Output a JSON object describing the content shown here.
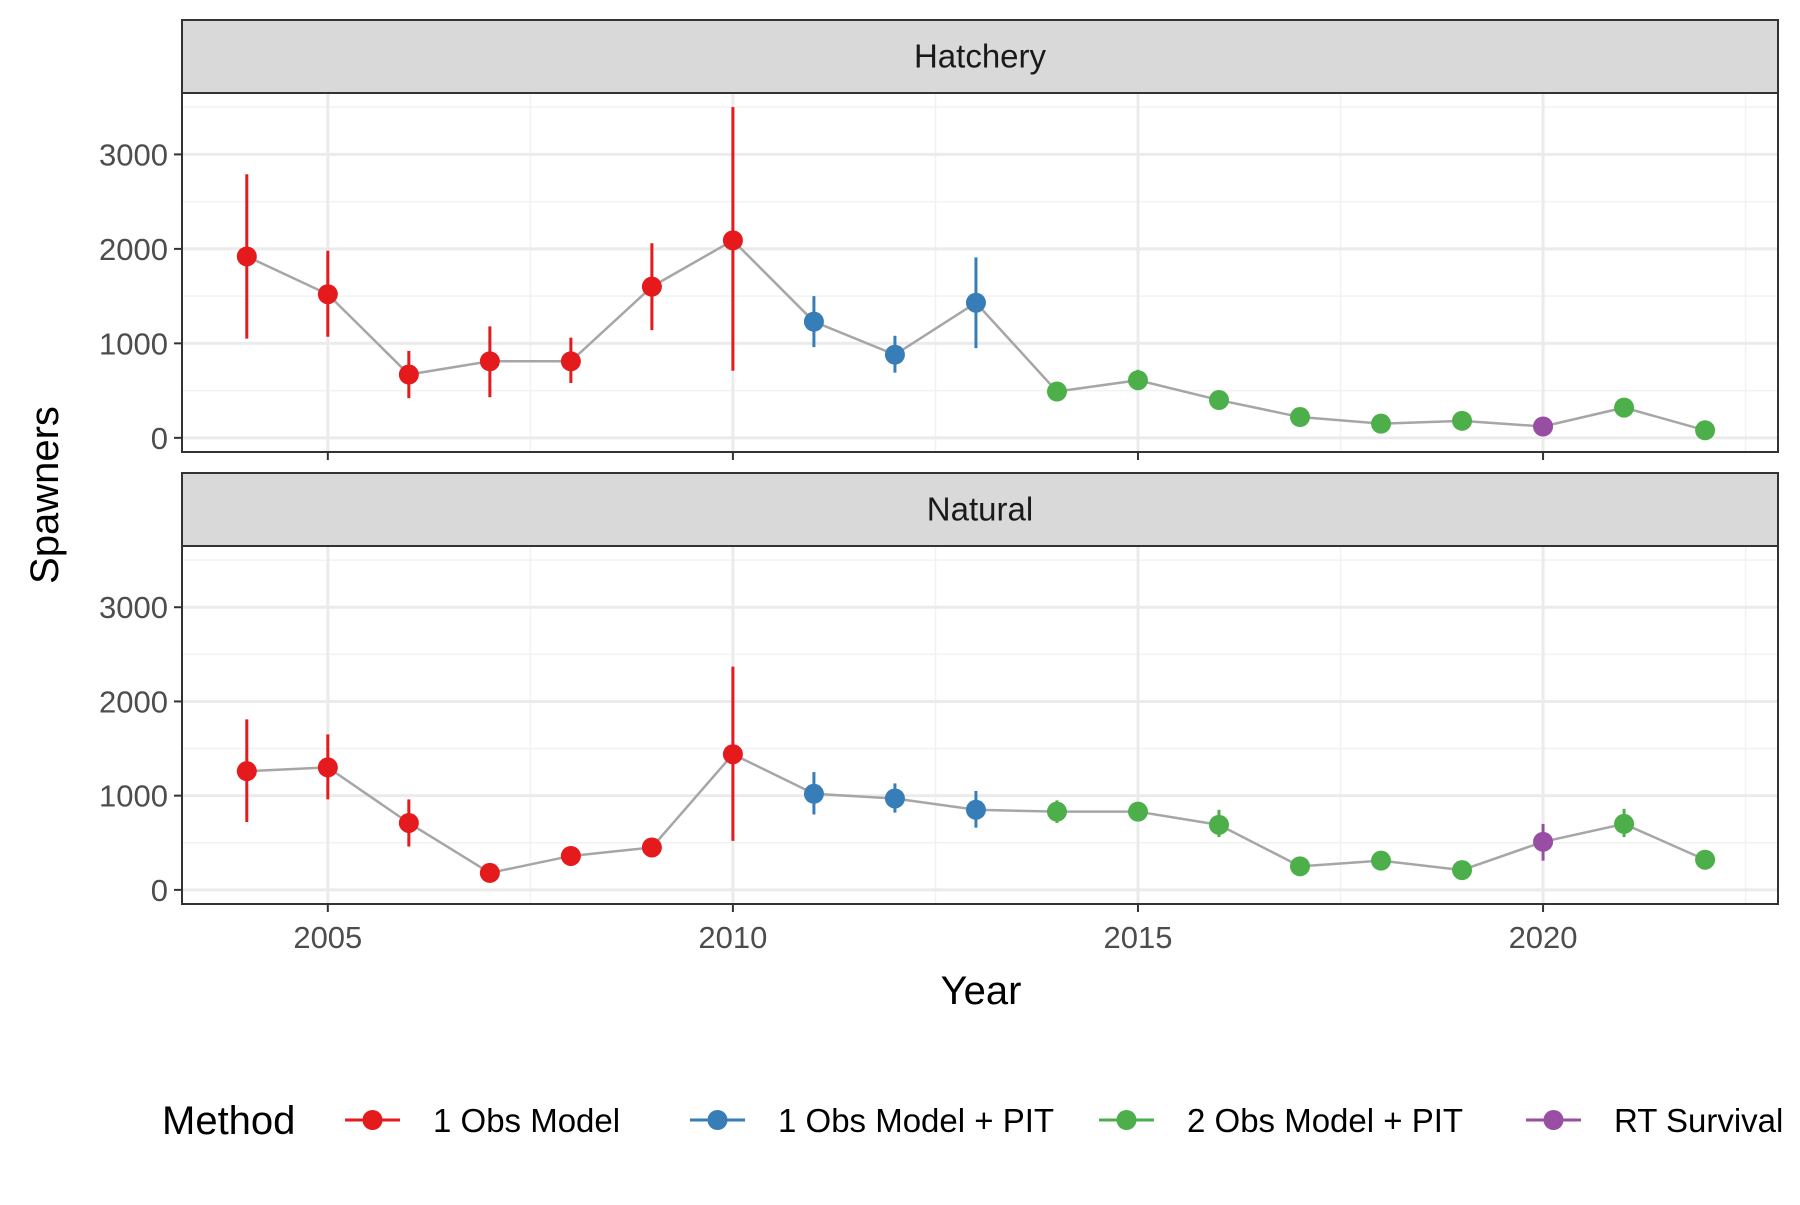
{
  "chart_data": {
    "type": "line",
    "xlabel": "Year",
    "ylabel": "Spawners",
    "xlim": [
      2003.2,
      2022.9
    ],
    "ylim": [
      -150,
      3650
    ],
    "x_ticks": [
      2005,
      2010,
      2015,
      2020
    ],
    "y_ticks": [
      0,
      1000,
      2000,
      3000
    ],
    "grid": true,
    "legend_position": "bottom",
    "legend_title": "Method",
    "methods": [
      {
        "name": "1 Obs Model",
        "color": "#E41A1C"
      },
      {
        "name": "1 Obs Model + PIT",
        "color": "#377EB8"
      },
      {
        "name": "2 Obs Model + PIT",
        "color": "#4DAF4A"
      },
      {
        "name": "RT Survival",
        "color": "#984EA3"
      }
    ],
    "line_color": "#A6A6A6",
    "panels": [
      {
        "label": "Hatchery",
        "points": [
          {
            "year": 2004,
            "value": 1920,
            "lower": 1050,
            "upper": 2790,
            "method": 0
          },
          {
            "year": 2005,
            "value": 1520,
            "lower": 1070,
            "upper": 1980,
            "method": 0
          },
          {
            "year": 2006,
            "value": 670,
            "lower": 420,
            "upper": 920,
            "method": 0
          },
          {
            "year": 2007,
            "value": 810,
            "lower": 430,
            "upper": 1180,
            "method": 0
          },
          {
            "year": 2008,
            "value": 810,
            "lower": 580,
            "upper": 1060,
            "method": 0
          },
          {
            "year": 2009,
            "value": 1600,
            "lower": 1140,
            "upper": 2060,
            "method": 0
          },
          {
            "year": 2010,
            "value": 2090,
            "lower": 710,
            "upper": 3500,
            "method": 0
          },
          {
            "year": 2011,
            "value": 1230,
            "lower": 960,
            "upper": 1500,
            "method": 1
          },
          {
            "year": 2012,
            "value": 880,
            "lower": 690,
            "upper": 1080,
            "method": 1
          },
          {
            "year": 2013,
            "value": 1430,
            "lower": 950,
            "upper": 1910,
            "method": 1
          },
          {
            "year": 2014,
            "value": 490,
            "lower": 430,
            "upper": 550,
            "method": 2
          },
          {
            "year": 2015,
            "value": 610,
            "lower": 520,
            "upper": 720,
            "method": 2
          },
          {
            "year": 2016,
            "value": 400,
            "lower": 350,
            "upper": 450,
            "method": 2
          },
          {
            "year": 2017,
            "value": 220,
            "lower": 190,
            "upper": 250,
            "method": 2
          },
          {
            "year": 2018,
            "value": 150,
            "lower": 120,
            "upper": 180,
            "method": 2
          },
          {
            "year": 2019,
            "value": 180,
            "lower": 150,
            "upper": 210,
            "method": 2
          },
          {
            "year": 2020,
            "value": 120,
            "lower": 90,
            "upper": 150,
            "method": 3
          },
          {
            "year": 2021,
            "value": 320,
            "lower": 270,
            "upper": 370,
            "method": 2
          },
          {
            "year": 2022,
            "value": 80,
            "lower": 60,
            "upper": 110,
            "method": 2
          }
        ]
      },
      {
        "label": "Natural",
        "points": [
          {
            "year": 2004,
            "value": 1260,
            "lower": 720,
            "upper": 1810,
            "method": 0
          },
          {
            "year": 2005,
            "value": 1300,
            "lower": 960,
            "upper": 1650,
            "method": 0
          },
          {
            "year": 2006,
            "value": 710,
            "lower": 460,
            "upper": 960,
            "method": 0
          },
          {
            "year": 2007,
            "value": 180,
            "lower": 130,
            "upper": 230,
            "method": 0
          },
          {
            "year": 2008,
            "value": 360,
            "lower": 320,
            "upper": 400,
            "method": 0
          },
          {
            "year": 2009,
            "value": 450,
            "lower": 400,
            "upper": 500,
            "method": 0
          },
          {
            "year": 2010,
            "value": 1440,
            "lower": 520,
            "upper": 2370,
            "method": 0
          },
          {
            "year": 2011,
            "value": 1020,
            "lower": 800,
            "upper": 1250,
            "method": 1
          },
          {
            "year": 2012,
            "value": 970,
            "lower": 820,
            "upper": 1130,
            "method": 1
          },
          {
            "year": 2013,
            "value": 850,
            "lower": 660,
            "upper": 1050,
            "method": 1
          },
          {
            "year": 2014,
            "value": 830,
            "lower": 710,
            "upper": 950,
            "method": 2
          },
          {
            "year": 2015,
            "value": 830,
            "lower": 740,
            "upper": 920,
            "method": 2
          },
          {
            "year": 2016,
            "value": 690,
            "lower": 560,
            "upper": 850,
            "method": 2
          },
          {
            "year": 2017,
            "value": 250,
            "lower": 210,
            "upper": 300,
            "method": 2
          },
          {
            "year": 2018,
            "value": 310,
            "lower": 260,
            "upper": 360,
            "method": 2
          },
          {
            "year": 2019,
            "value": 210,
            "lower": 170,
            "upper": 260,
            "method": 2
          },
          {
            "year": 2020,
            "value": 510,
            "lower": 310,
            "upper": 700,
            "method": 3
          },
          {
            "year": 2021,
            "value": 700,
            "lower": 560,
            "upper": 860,
            "method": 2
          },
          {
            "year": 2022,
            "value": 320,
            "lower": 270,
            "upper": 380,
            "method": 2
          }
        ]
      }
    ]
  }
}
